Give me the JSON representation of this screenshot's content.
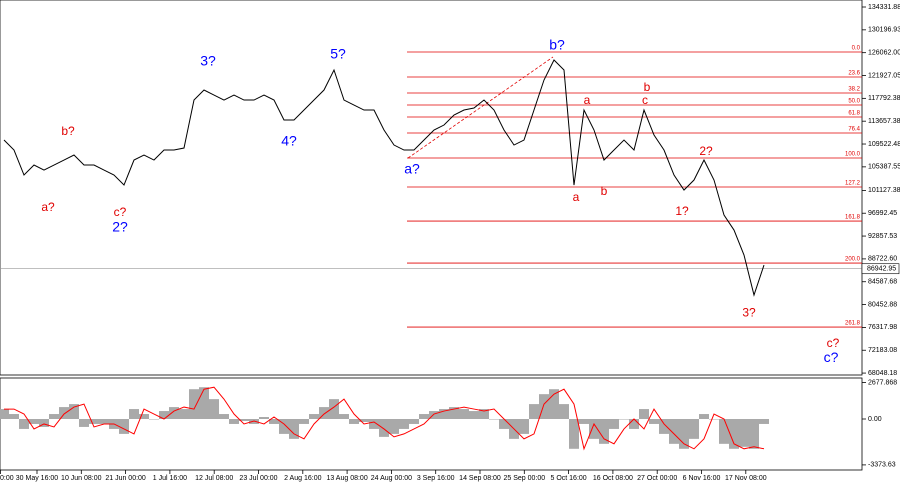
{
  "chart_data": [
    {
      "type": "line",
      "values": [
        110246,
        108435,
        103908,
        105719,
        104813,
        105719,
        106624,
        107530,
        105719,
        105719,
        104813,
        103908,
        102097,
        106624,
        107530,
        106624,
        108435,
        108435,
        108797,
        117490,
        119301,
        118396,
        117490,
        118396,
        117490,
        117490,
        118396,
        117490,
        113868,
        113868,
        115679,
        117490,
        119301,
        122923,
        117490,
        116585,
        115679,
        115679,
        112057,
        109341,
        108435,
        108435,
        110246,
        112057,
        112963,
        114774,
        115679,
        116041,
        117490,
        115679,
        112057,
        109341,
        110246,
        115679,
        121112,
        124734,
        122923,
        102097,
        115679,
        112057,
        106624,
        108435,
        110246,
        108435,
        115679,
        111152,
        108435,
        103908,
        101191,
        103002,
        106624,
        103002,
        96664,
        93947,
        89420,
        82176,
        87608
      ],
      "color": "#000000",
      "ylim": [
        67700,
        135600
      ],
      "yticks": [
        134331.88,
        130196.93,
        {
          "value": 126062,
          "label": "126062.00"
        },
        121927.05,
        117792.38,
        113657.38,
        109522.48,
        105387.55,
        101127.38,
        96992.45,
        92857.53,
        {
          "value": 88722.6,
          "label": "88722.60"
        },
        84587.68,
        80452.88,
        76317.98,
        72183.08,
        68048.18
      ],
      "xtick_labels": [
        "0:00",
        "30 May 16:00",
        "10 Jun 08:00",
        "21 Jun 00:00",
        "1 Jul 16:00",
        "12 Jul 08:00",
        "23 Jul 00:00",
        "2 Aug 16:00",
        "13 Aug 08:00",
        "24 Aug 00:00",
        "3 Sep 16:00",
        "14 Sep 08:00",
        "25 Sep 00:00",
        "5 Oct 16:00",
        "16 Oct 08:00",
        "27 Oct 00:00",
        "6 Nov 16:00",
        "17 Nov 08:00"
      ],
      "last_price": 86942.95,
      "fib_color": "#e00000",
      "fib_levels": [
        {
          "label": "0.0",
          "level": 126183
        },
        {
          "label": "23.6",
          "level": 121655
        },
        {
          "label": "38.2",
          "level": 118758
        },
        {
          "label": "50.0",
          "level": 116585
        },
        {
          "label": "61.8",
          "level": 114411
        },
        {
          "label": "76.4",
          "level": 111514
        },
        {
          "label": "100.0",
          "level": 106986
        },
        {
          "label": "127.2",
          "level": 101735
        },
        {
          "label": "161.8",
          "level": 95577
        },
        {
          "label": "200.0",
          "level": 87971
        },
        {
          "label": "261.8",
          "level": 76380
        }
      ],
      "annotations": [
        {
          "text": "a?",
          "color": "#e00000",
          "x": 4.4,
          "y": 97931
        },
        {
          "text": "b?",
          "color": "#e00000",
          "x": 6.4,
          "y": 111695
        },
        {
          "text": "c?",
          "color": "#e00000",
          "x": 11.6,
          "y": 97026
        },
        {
          "text": "2?",
          "color": "#0000ff",
          "x": 11.6,
          "y": 94309
        },
        {
          "text": "3?",
          "color": "#0000ff",
          "x": 20.4,
          "y": 124372
        },
        {
          "text": "4?",
          "color": "#0000ff",
          "x": 28.5,
          "y": 109884
        },
        {
          "text": "5?",
          "color": "#0000ff",
          "x": 33.4,
          "y": 125640
        },
        {
          "text": "a?",
          "color": "#0000ff",
          "x": 40.8,
          "y": 104813
        },
        {
          "text": "b?",
          "color": "#0000ff",
          "x": 55.3,
          "y": 127269
        },
        {
          "text": "a",
          "color": "#e00000",
          "x": 58.3,
          "y": 117309
        },
        {
          "text": "a",
          "color": "#e00000",
          "x": 57.2,
          "y": 99742
        },
        {
          "text": "b",
          "color": "#e00000",
          "x": 60,
          "y": 100829
        },
        {
          "text": "b",
          "color": "#e00000",
          "x": 64.3,
          "y": 119663
        },
        {
          "text": "c",
          "color": "#e00000",
          "x": 64.1,
          "y": 117309
        },
        {
          "text": "2?",
          "color": "#e00000",
          "x": 70.2,
          "y": 108073
        },
        {
          "text": "1?",
          "color": "#e00000",
          "x": 67.8,
          "y": 97207
        },
        {
          "text": "3?",
          "color": "#e00000",
          "x": 74.5,
          "y": 78909
        },
        {
          "text": "c?",
          "color": "#e00000",
          "x": 82.9,
          "y": 73302
        },
        {
          "text": "c?",
          "color": "#0000ff",
          "x": 82.7,
          "y": 70765
        }
      ]
    },
    {
      "type": "bar",
      "values": [
        730,
        365,
        -730,
        -365,
        -584,
        365,
        876,
        1095,
        -584,
        -365,
        -365,
        -730,
        -1095,
        730,
        365,
        0,
        584,
        876,
        730,
        2190,
        2336,
        1460,
        365,
        -365,
        -146,
        -365,
        146,
        -365,
        -1095,
        -1460,
        -365,
        365,
        876,
        1460,
        365,
        -365,
        -219,
        -730,
        -1314,
        -1095,
        -730,
        -365,
        365,
        584,
        730,
        876,
        730,
        584,
        730,
        0,
        -730,
        -1460,
        -1095,
        1095,
        1825,
        2190,
        1095,
        -2190,
        -365,
        -1460,
        -1825,
        -730,
        0,
        -730,
        730,
        -365,
        -1095,
        -1825,
        -2190,
        -1460,
        365,
        0,
        -1825,
        -2190,
        -2044,
        -2190,
        -365
      ],
      "color": "#a9a9a9",
      "signal": {
        "color": "#ff0000",
        "values": [
          730,
          730,
          365,
          -730,
          -365,
          -584,
          365,
          876,
          1095,
          -584,
          -365,
          -365,
          -730,
          -1095,
          730,
          365,
          0,
          584,
          876,
          730,
          2190,
          2336,
          1460,
          365,
          -365,
          -146,
          -365,
          146,
          -365,
          -1095,
          -1460,
          -365,
          365,
          876,
          1460,
          365,
          -365,
          -219,
          -730,
          -1314,
          -1095,
          -730,
          -365,
          365,
          584,
          730,
          876,
          730,
          584,
          730,
          0,
          -730,
          -1460,
          -1095,
          1095,
          1825,
          2190,
          1095,
          -2190,
          -365,
          -1460,
          -1825,
          -730,
          0,
          -730,
          730,
          -365,
          -1095,
          -1825,
          -2190,
          -1460,
          365,
          0,
          -1825,
          -2190,
          -2044,
          -2190
        ]
      },
      "ylim": [
        -3748,
        3013
      ],
      "yticks": [
        2677.868,
        {
          "value": 0,
          "label": "0.00"
        },
        -3373.63
      ]
    }
  ]
}
